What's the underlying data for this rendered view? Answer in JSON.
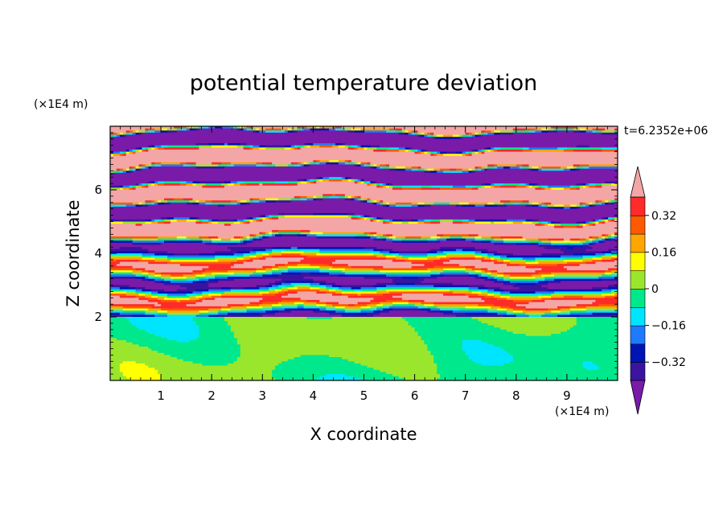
{
  "chart_data": {
    "type": "heatmap",
    "title": "potential temperature deviation",
    "xlabel": "X coordinate",
    "ylabel": "Z coordinate",
    "x_unit": "(×1E4 m)",
    "y_unit": "(×1E4 m)",
    "time_label": "t=6.2352e+06",
    "xlim": [
      0,
      10
    ],
    "ylim": [
      0,
      8
    ],
    "x_ticks": [
      1,
      2,
      3,
      4,
      5,
      6,
      7,
      8,
      9
    ],
    "y_ticks": [
      2,
      4,
      6
    ],
    "colorbar": {
      "levels": [
        -0.4,
        -0.32,
        -0.24,
        -0.16,
        -0.08,
        0,
        0.08,
        0.16,
        0.24,
        0.32,
        0.4
      ],
      "tick_values": [
        0.32,
        0.16,
        0,
        -0.16,
        -0.32
      ],
      "tick_labels": [
        "0.32",
        "0.16",
        "0",
        "−0.16",
        "−0.32"
      ],
      "extend": "both",
      "colors": {
        "over": "#f4a6a6",
        "0.32_to_0.40": "#ff2a2a",
        "0.24_to_0.32": "#ff5a00",
        "0.16_to_0.24": "#ffa500",
        "0.08_to_0.16": "#ffff00",
        "0_to_0.08": "#9ae62c",
        "-0.08_to_0": "#00e88c",
        "-0.16_to_-0.08": "#00e5ff",
        "-0.24_to_-0.16": "#1e7aff",
        "-0.32_to_-0.24": "#0014b4",
        "-0.40_to_-0.32": "#3a14a0",
        "under": "#7a1aa8"
      }
    },
    "field_description": {
      "lower_layer_z_range": [
        0,
        2
      ],
      "lower_layer_values": "near 0 (green / yellow-green)",
      "upper_layer_z_range": [
        2,
        8
      ],
      "upper_layer_values": "alternating positive and negative horizontal bands, magnitude exceeding 0.4 above z=5"
    }
  }
}
